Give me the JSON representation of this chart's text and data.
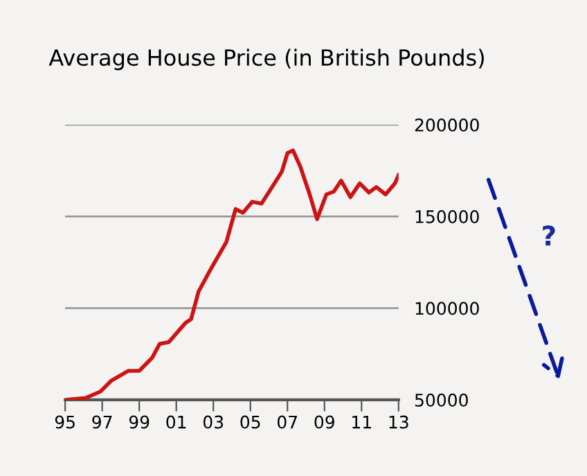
{
  "chart_data": {
    "type": "line",
    "title": "Average House Price (in British Pounds)",
    "annotations": [
      "?"
    ],
    "x": [
      1995,
      1996.1,
      1996.9,
      1997.5,
      1998.4,
      1999.0,
      1999.7,
      2000.1,
      2000.6,
      2001.5,
      2001.8,
      2002.2,
      2002.9,
      2003.7,
      2004.2,
      2004.6,
      2005.1,
      2005.6,
      2006.3,
      2006.7,
      2007.0,
      2007.3,
      2007.7,
      2008.2,
      2008.6,
      2009.1,
      2009.5,
      2009.9,
      2010.4,
      2010.9,
      2011.4,
      2011.8,
      2012.3,
      2012.8,
      2013.0
    ],
    "series": [
      {
        "color": "#cc1414",
        "values": [
          50000,
          51000,
          54500,
          60500,
          65800,
          65800,
          73000,
          80500,
          81500,
          92000,
          94000,
          109000,
          122000,
          136000,
          154000,
          152000,
          158000,
          157000,
          168000,
          174500,
          184500,
          186000,
          177000,
          162000,
          148500,
          162000,
          163500,
          169500,
          160500,
          168000,
          163000,
          166000,
          162000,
          168000,
          172500
        ]
      }
    ],
    "xlim": [
      1995,
      2013
    ],
    "xticks": [
      {
        "value": 1995,
        "label": "95"
      },
      {
        "value": 1997,
        "label": "97"
      },
      {
        "value": 1999,
        "label": "99"
      },
      {
        "value": 2001,
        "label": "01"
      },
      {
        "value": 2003,
        "label": "03"
      },
      {
        "value": 2005,
        "label": "05"
      },
      {
        "value": 2007,
        "label": "07"
      },
      {
        "value": 2009,
        "label": "09"
      },
      {
        "value": 2011,
        "label": "11"
      },
      {
        "value": 2013,
        "label": "13"
      }
    ],
    "ylim": [
      50000,
      200000
    ],
    "yticks": [
      50000,
      100000,
      150000,
      200000
    ],
    "grid": "y",
    "legend": false,
    "marker": "none",
    "line_style": "solid"
  }
}
